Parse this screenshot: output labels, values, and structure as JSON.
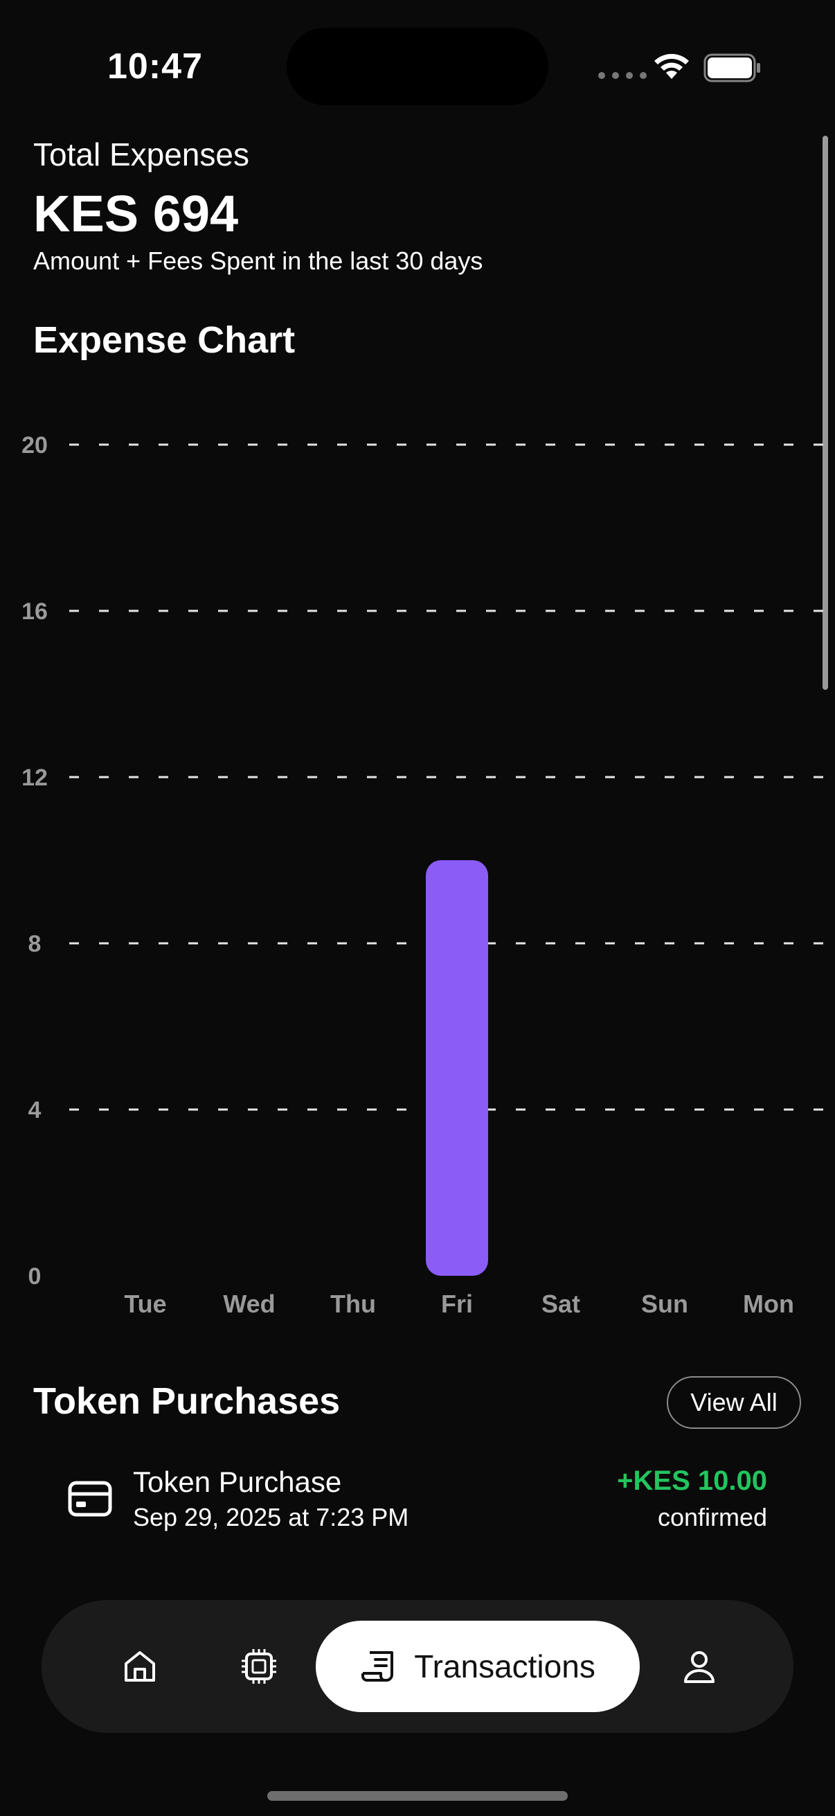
{
  "status_bar": {
    "time": "10:47"
  },
  "summary": {
    "label": "Total Expenses",
    "total": "KES 694",
    "subtitle": "Amount + Fees Spent in the last 30 days"
  },
  "chart_heading": "Expense Chart",
  "chart_data": {
    "type": "bar",
    "title": "",
    "categories": [
      "Tue",
      "Wed",
      "Thu",
      "Fri",
      "Sat",
      "Sun",
      "Mon"
    ],
    "values": [
      0,
      0,
      0,
      10,
      0,
      0,
      0
    ],
    "yticks": [
      "0",
      "4",
      "8",
      "12",
      "16",
      "20"
    ],
    "ylim": [
      0,
      20
    ],
    "grid": true,
    "bar_color": "#8b5cf6"
  },
  "token_purchases": {
    "heading": "Token Purchases",
    "view_all": "View All",
    "items": [
      {
        "title": "Token Purchase",
        "date": "Sep 29, 2025 at 7:23 PM",
        "amount": "+KES 10.00",
        "status": "confirmed",
        "icon": "credit-card-icon"
      }
    ]
  },
  "nav": {
    "items": [
      {
        "icon": "home-icon"
      },
      {
        "icon": "chip-icon"
      },
      {
        "icon": "receipt-icon",
        "label": "Transactions",
        "active": true
      },
      {
        "icon": "user-icon"
      }
    ]
  },
  "colors": {
    "background": "#0a0a0a",
    "accent": "#8b5cf6",
    "positive": "#22c55e"
  }
}
